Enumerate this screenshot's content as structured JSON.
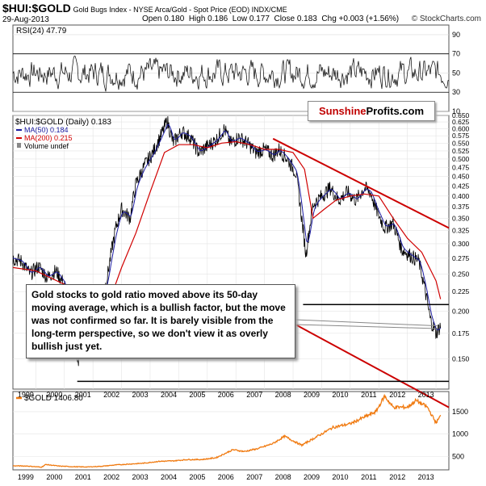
{
  "header": {
    "symbol": "$HUI:$GOLD",
    "description": "Gold Bugs Index - NYSE Arca/Gold - Spot Price (EOD) INDX/CME",
    "date": "29-Aug-2013",
    "open": "Open 0.180",
    "high": "High 0.186",
    "low": "Low 0.177",
    "close": "Close 0.183",
    "change": "Chg +0.003 (+1.56%)",
    "credit": "© StockCharts.com"
  },
  "logo": {
    "part1": "Sunshine",
    "part2": "Profits.com"
  },
  "annotation": "Gold stocks to gold ratio moved above its 50-day moving average, which is a bullish factor, but the move was not confirmed so far. It is barely visible from the long-term perspective, so we don't view it as overly bullish just yet.",
  "colors": {
    "price": "#000000",
    "ma50": "#1a1aa0",
    "ma200": "#d00000",
    "gold": "#f07a10",
    "trend": "#cc0000"
  },
  "chart_data": [
    {
      "type": "line",
      "title": "RSI(24) 47.79",
      "ylim": [
        10,
        100
      ],
      "yticks": [
        10,
        30,
        50,
        70,
        90
      ],
      "reference_lines": [
        30,
        70
      ],
      "series": [
        {
          "name": "RSI(24)",
          "last": 47.79
        }
      ]
    },
    {
      "type": "line",
      "title": "$HUI:$GOLD (Daily) 0.183",
      "legend": [
        "MA(50) 0.184",
        "MA(200) 0.215",
        "Volume undef"
      ],
      "ylim": [
        0.125,
        0.65
      ],
      "yticks": [
        "0.650",
        "0.625",
        "0.600",
        "0.575",
        "0.550",
        "0.525",
        "0.500",
        "0.475",
        "0.450",
        "0.425",
        "0.400",
        "0.375",
        "0.350",
        "0.325",
        "0.300",
        "0.275",
        "0.250",
        "0.225",
        "0.200",
        "0.175",
        "0.150"
      ],
      "xticks": [
        "1999",
        "2000",
        "2001",
        "2002",
        "2003",
        "2004",
        "2005",
        "2006",
        "2007",
        "2008",
        "2009",
        "2010",
        "2011",
        "2012",
        "2013"
      ],
      "series": [
        {
          "name": "$HUI:$GOLD",
          "x": [
            1998.7,
            1999.0,
            1999.3,
            1999.6,
            1999.9,
            2000.2,
            2000.5,
            2000.8,
            2000.95,
            2001.2,
            2001.5,
            2001.8,
            2002.0,
            2002.3,
            2002.5,
            2002.8,
            2003.0,
            2003.3,
            2003.6,
            2003.9,
            2004.1,
            2004.3,
            2004.6,
            2004.9,
            2005.2,
            2005.5,
            2005.8,
            2006.1,
            2006.3,
            2006.6,
            2006.9,
            2007.2,
            2007.5,
            2007.8,
            2008.0,
            2008.3,
            2008.6,
            2008.8,
            2008.95,
            2009.2,
            2009.5,
            2009.8,
            2010.1,
            2010.4,
            2010.7,
            2011.0,
            2011.2,
            2011.4,
            2011.7,
            2012.0,
            2012.3,
            2012.6,
            2012.9,
            2013.1,
            2013.3,
            2013.5,
            2013.66
          ],
          "y": [
            0.275,
            0.27,
            0.25,
            0.262,
            0.245,
            0.255,
            0.235,
            0.19,
            0.143,
            0.175,
            0.205,
            0.21,
            0.245,
            0.33,
            0.37,
            0.35,
            0.43,
            0.48,
            0.52,
            0.58,
            0.63,
            0.55,
            0.59,
            0.57,
            0.52,
            0.54,
            0.56,
            0.6,
            0.55,
            0.57,
            0.55,
            0.52,
            0.53,
            0.51,
            0.53,
            0.5,
            0.46,
            0.35,
            0.28,
            0.38,
            0.4,
            0.42,
            0.39,
            0.41,
            0.39,
            0.42,
            0.41,
            0.37,
            0.33,
            0.34,
            0.29,
            0.28,
            0.27,
            0.23,
            0.19,
            0.175,
            0.183
          ]
        },
        {
          "name": "MA(50)",
          "last": 0.184
        },
        {
          "name": "MA(200)",
          "x": [
            1998.7,
            1999.5,
            2000.5,
            2001.0,
            2001.5,
            2002.0,
            2002.5,
            2003.0,
            2003.5,
            2004.0,
            2004.5,
            2005.0,
            2005.5,
            2006.0,
            2006.5,
            2007.0,
            2007.5,
            2008.0,
            2008.5,
            2008.9,
            2009.2,
            2009.6,
            2010.0,
            2010.5,
            2011.0,
            2011.5,
            2012.0,
            2012.5,
            2013.0,
            2013.5,
            2013.66
          ],
          "y": [
            0.26,
            0.255,
            0.235,
            0.21,
            0.195,
            0.205,
            0.26,
            0.32,
            0.41,
            0.52,
            0.545,
            0.545,
            0.535,
            0.55,
            0.555,
            0.545,
            0.53,
            0.53,
            0.52,
            0.47,
            0.35,
            0.37,
            0.39,
            0.4,
            0.405,
            0.4,
            0.35,
            0.31,
            0.285,
            0.24,
            0.215
          ]
        }
      ],
      "trend_lines": [
        {
          "from": [
            2007.8,
            0.565
          ],
          "to": [
            2013.95,
            0.33
          ]
        },
        {
          "from": [
            2007.5,
            0.204
          ],
          "to": [
            2013.95,
            0.112
          ]
        }
      ],
      "support_lines": [
        0.208,
        0.131
      ]
    },
    {
      "type": "line",
      "title": "$GOLD 1406.80",
      "ylim": [
        200,
        1950
      ],
      "yticks": [
        500,
        1000,
        1500
      ],
      "series": [
        {
          "name": "$GOLD",
          "x": [
            1998.7,
            1999.2,
            1999.7,
            1999.85,
            2000.3,
            2000.8,
            2001.3,
            2001.8,
            2002.3,
            2002.8,
            2003.3,
            2003.8,
            2004.3,
            2004.8,
            2005.3,
            2005.8,
            2006.1,
            2006.4,
            2006.8,
            2007.3,
            2007.8,
            2008.2,
            2008.8,
            2009.3,
            2009.9,
            2010.5,
            2011.0,
            2011.4,
            2011.7,
            2012.0,
            2012.5,
            2012.8,
            2013.2,
            2013.5,
            2013.66
          ],
          "y": [
            290,
            285,
            260,
            320,
            285,
            270,
            265,
            280,
            310,
            330,
            350,
            390,
            400,
            430,
            430,
            470,
            560,
            650,
            610,
            680,
            790,
            950,
            750,
            930,
            1150,
            1230,
            1380,
            1500,
            1850,
            1600,
            1600,
            1750,
            1600,
            1250,
            1406.8
          ]
        }
      ]
    }
  ]
}
